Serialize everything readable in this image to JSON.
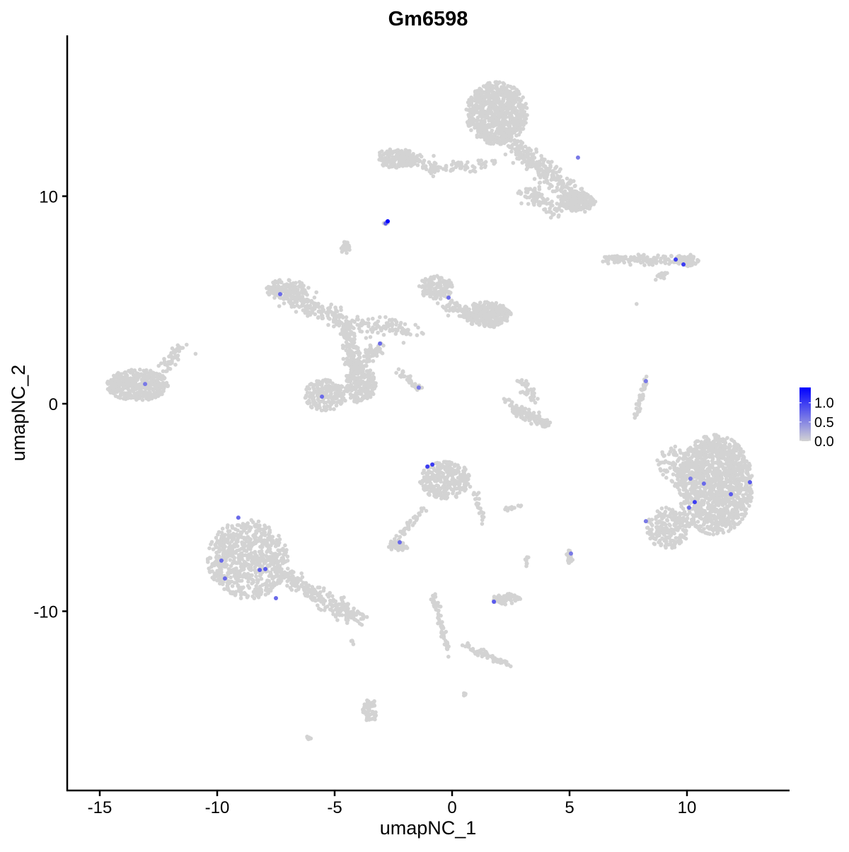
{
  "chart_data": {
    "type": "scatter",
    "title": "Gm6598",
    "xlabel": "umapNC_1",
    "ylabel": "umapNC_2",
    "xlim": [
      -16.5,
      14.5
    ],
    "ylim": [
      -18.4,
      18.0
    ],
    "x_ticks": [
      -15,
      -10,
      -5,
      0,
      5,
      10
    ],
    "y_ticks": [
      -10,
      0,
      10
    ],
    "grid": false,
    "legend": {
      "placement": "right",
      "type": "colorbar",
      "ticks": [
        "0.0",
        "0.5",
        "1.0"
      ],
      "range": [
        0,
        1.4
      ]
    },
    "colors": {
      "low": "#d3d3d3",
      "high": "#0000ff"
    },
    "background_value": 0,
    "expressing_cells": [
      {
        "x": -2.74,
        "y": 8.79,
        "value": 1.4
      },
      {
        "x": -2.83,
        "y": 8.69,
        "value": 0.8
      },
      {
        "x": -0.15,
        "y": 5.11,
        "value": 0.7
      },
      {
        "x": -7.32,
        "y": 5.28,
        "value": 0.7
      },
      {
        "x": -3.07,
        "y": 2.9,
        "value": 0.7
      },
      {
        "x": -1.42,
        "y": 0.78,
        "value": 0.6
      },
      {
        "x": -5.54,
        "y": 0.34,
        "value": 0.7
      },
      {
        "x": -13.07,
        "y": 0.95,
        "value": 0.6
      },
      {
        "x": 5.36,
        "y": 11.86,
        "value": 0.6
      },
      {
        "x": 9.52,
        "y": 6.95,
        "value": 1.0
      },
      {
        "x": 9.85,
        "y": 6.71,
        "value": 1.0
      },
      {
        "x": 8.25,
        "y": 1.09,
        "value": 0.6
      },
      {
        "x": -1.05,
        "y": -3.03,
        "value": 1.0
      },
      {
        "x": -0.84,
        "y": -2.93,
        "value": 1.0
      },
      {
        "x": -2.23,
        "y": -6.68,
        "value": 0.7
      },
      {
        "x": 5.06,
        "y": -7.22,
        "value": 0.6
      },
      {
        "x": 1.78,
        "y": -9.54,
        "value": 0.8
      },
      {
        "x": -9.1,
        "y": -5.49,
        "value": 0.7
      },
      {
        "x": -9.82,
        "y": -7.56,
        "value": 0.7
      },
      {
        "x": -9.67,
        "y": -8.42,
        "value": 0.7
      },
      {
        "x": -8.19,
        "y": -8.01,
        "value": 0.8
      },
      {
        "x": -7.95,
        "y": -7.97,
        "value": 0.8
      },
      {
        "x": -7.5,
        "y": -9.37,
        "value": 0.7
      },
      {
        "x": 10.15,
        "y": -3.61,
        "value": 0.6
      },
      {
        "x": 10.72,
        "y": -3.85,
        "value": 0.7
      },
      {
        "x": 10.33,
        "y": -4.74,
        "value": 1.0
      },
      {
        "x": 10.09,
        "y": -5.01,
        "value": 0.7
      },
      {
        "x": 11.87,
        "y": -4.36,
        "value": 0.8
      },
      {
        "x": 12.68,
        "y": -3.78,
        "value": 0.8
      },
      {
        "x": 8.25,
        "y": -5.66,
        "value": 0.6
      }
    ]
  }
}
